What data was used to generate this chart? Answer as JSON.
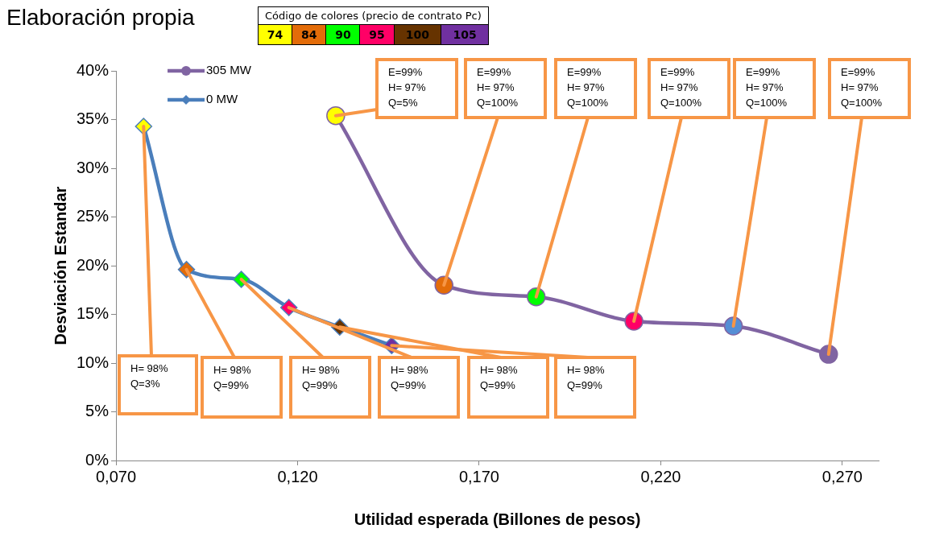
{
  "chart_data": {
    "type": "line",
    "xlabel": "Utilidad esperada (Billones de pesos)",
    "ylabel": "Desviación Estandar",
    "xlim": [
      0.07,
      0.28
    ],
    "xticks": [
      {
        "value": 0.07,
        "label": "0,070"
      },
      {
        "value": 0.12,
        "label": "0,120"
      },
      {
        "value": 0.17,
        "label": "0,170"
      },
      {
        "value": 0.22,
        "label": "0,220"
      },
      {
        "value": 0.27,
        "label": "0,270"
      }
    ],
    "ylim": [
      0,
      40
    ],
    "yticks": [
      {
        "value": 0,
        "label": "0%"
      },
      {
        "value": 5,
        "label": "5%"
      },
      {
        "value": 10,
        "label": "10%"
      },
      {
        "value": 15,
        "label": "15%"
      },
      {
        "value": 20,
        "label": "20%"
      },
      {
        "value": 25,
        "label": "25%"
      },
      {
        "value": 30,
        "label": "30%"
      },
      {
        "value": 35,
        "label": "35%"
      },
      {
        "value": 40,
        "label": "40%"
      }
    ],
    "grid": false,
    "legend": "top left",
    "series": [
      {
        "name": "305 MW",
        "color": "#8064a2",
        "marker": "circle",
        "x": [
          0.1305,
          0.1603,
          0.1857,
          0.2126,
          0.24,
          0.2662
        ],
        "values": [
          35.4,
          18.0,
          16.8,
          14.3,
          13.8,
          10.9
        ],
        "colors": [
          "#ffff00",
          "#e36c09",
          "#00ff00",
          "#ff0066",
          "#558ed5",
          "#8064a2"
        ]
      },
      {
        "name": "0 MW",
        "color": "#4a7ebb",
        "marker": "diamond",
        "x": [
          0.0776,
          0.0894,
          0.1045,
          0.1176,
          0.1316,
          0.1459
        ],
        "values": [
          34.3,
          19.6,
          18.6,
          15.7,
          13.7,
          11.8
        ],
        "colors": [
          "#ffff00",
          "#e36c09",
          "#00ff00",
          "#ff0066",
          "#663300",
          "#7030a0"
        ]
      }
    ],
    "annotations": [
      "Elaboración propia",
      "Código de colores (precio de contrato Pc)",
      "74",
      "84",
      "90",
      "95",
      "100",
      "105",
      {
        "text": "E=99%\nH= 97%\nQ=5%",
        "x": 0.1305,
        "y": 35.4
      },
      {
        "text": "E=99%\nH= 97%\nQ=100%",
        "x": 0.1603,
        "y": 18.0
      },
      {
        "text": "E=99%\nH= 97%\nQ=100%",
        "x": 0.1857,
        "y": 16.8
      },
      {
        "text": "E=99%\nH= 97%\nQ=100%",
        "x": 0.2126,
        "y": 14.3
      },
      {
        "text": "E=99%\nH= 97%\nQ=100%",
        "x": 0.24,
        "y": 13.8
      },
      {
        "text": "E=99%\nH= 97%\nQ=100%",
        "x": 0.2662,
        "y": 10.9
      },
      {
        "text": "H= 98%\nQ=3%",
        "x": 0.0776,
        "y": 34.3
      },
      {
        "text": "H= 98%\nQ=99%",
        "x": 0.0894,
        "y": 19.6
      },
      {
        "text": "H= 98%\nQ=99%",
        "x": 0.1045,
        "y": 18.6
      },
      {
        "text": "H= 98%\nQ=99%",
        "x": 0.1176,
        "y": 15.7
      },
      {
        "text": "H= 98%\nQ=99%",
        "x": 0.1316,
        "y": 13.7
      },
      {
        "text": "H= 98%\nQ=99%",
        "x": 0.1459,
        "y": 11.8
      }
    ]
  }
}
